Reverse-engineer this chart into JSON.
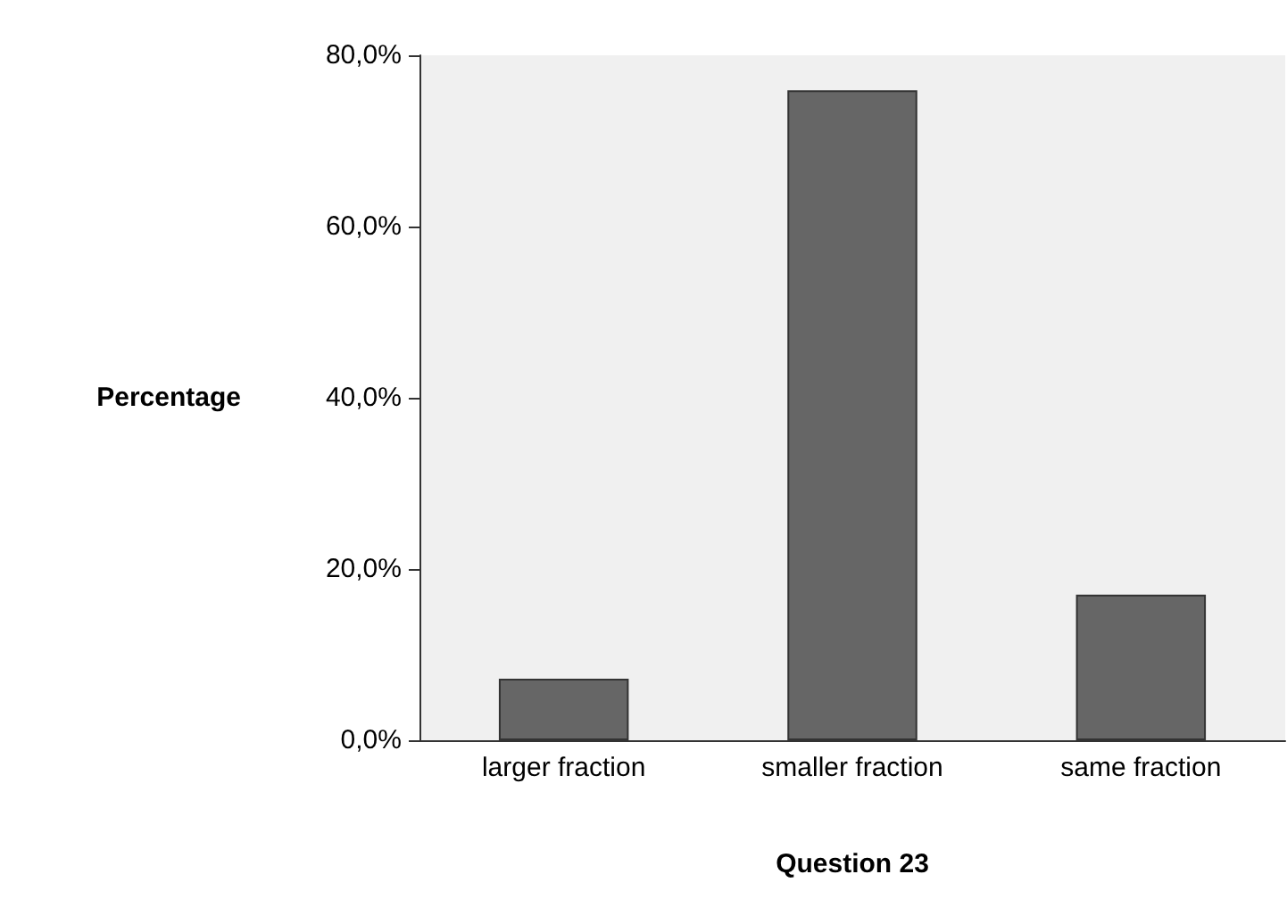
{
  "chart_data": {
    "type": "bar",
    "xlabel": "Question 23",
    "ylabel": "Percentage",
    "categories": [
      "larger fraction",
      "smaller fraction",
      "same fraction"
    ],
    "values": [
      7.2,
      75.9,
      17.0
    ],
    "color": "#666666",
    "ylim": [
      0,
      80
    ],
    "yticks": [
      {
        "value": 0,
        "label": "0,0%"
      },
      {
        "value": 20,
        "label": "20,0%"
      },
      {
        "value": 40,
        "label": "40,0%"
      },
      {
        "value": 60,
        "label": "60,0%"
      },
      {
        "value": 80,
        "label": "80,0%"
      }
    ],
    "grid": false
  }
}
